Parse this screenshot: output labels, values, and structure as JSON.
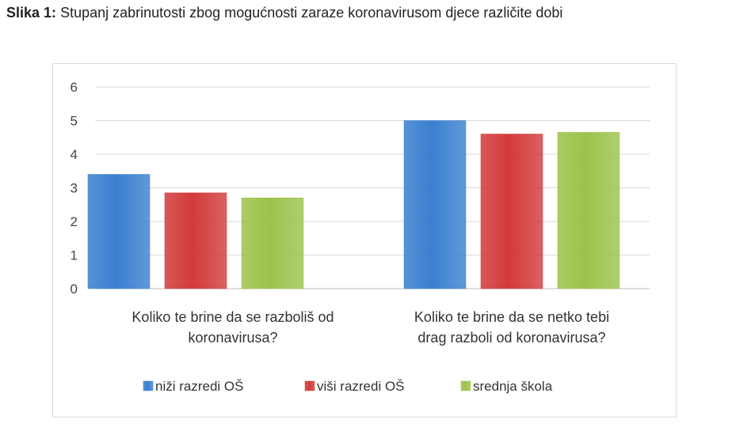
{
  "caption": {
    "prefix": "Slika 1:",
    "text": "Stupanj zabrinutosti zbog mogućnosti zaraze koronavirusom djece različite dobi"
  },
  "chart_data": {
    "type": "bar",
    "title": "",
    "xlabel": "",
    "ylabel": "",
    "ylim": [
      0,
      6
    ],
    "yticks": [
      0,
      1,
      2,
      3,
      4,
      5,
      6
    ],
    "grid": true,
    "legend_position": "bottom",
    "categories": [
      [
        "Koliko te brine da se razboliš od",
        "koronavirusa?"
      ],
      [
        "Koliko te brine  da se netko tebi",
        "drag razboli od koronavirusa?"
      ]
    ],
    "series": [
      {
        "name": "niži razredi OŠ",
        "color": "#3a7fd0",
        "values": [
          3.4,
          5.0
        ]
      },
      {
        "name": "viši razredi OŠ",
        "color": "#d23a3a",
        "values": [
          2.85,
          4.6
        ]
      },
      {
        "name": "srednja škola",
        "color": "#9cc24a",
        "values": [
          2.7,
          4.65
        ]
      }
    ]
  }
}
